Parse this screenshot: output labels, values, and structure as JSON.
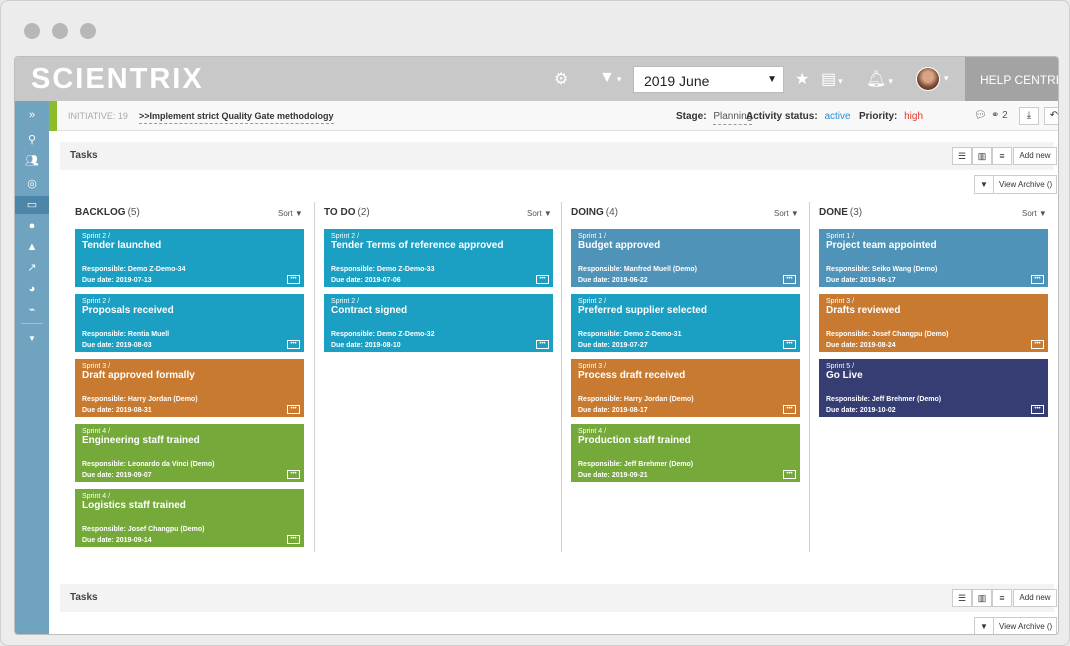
{
  "app": {
    "logo": "SCIENTRIX",
    "date_selected": "2019 June",
    "help_label": "HELP CENTRE"
  },
  "initiative": {
    "label": "INITIATIVE: 19",
    "title": ">>Implement strict Quality Gate methodology",
    "stage_label": "Stage:",
    "stage_value": "Planning",
    "activity_label": "Activity status:",
    "activity_value": "active",
    "priority_label": "Priority:",
    "priority_value": "high",
    "participants_count": "2",
    "colors": {
      "accent": "#8dbb2a",
      "active": "#2a8fcf",
      "high": "#e23b2b"
    }
  },
  "panel": {
    "title": "Tasks",
    "add_label": "Add new",
    "archive_label": "View Archive ()"
  },
  "panel2": {
    "title": "Tasks",
    "add_label": "Add new",
    "archive_label": "View Archive ()"
  },
  "board": {
    "sort_label": "Sort",
    "columns": [
      {
        "name": "BACKLOG",
        "count": "(5)",
        "cards": [
          {
            "sprint": "Sprint 2 /",
            "title": "Tender launched",
            "responsible": "Responsible: Demo Z-Demo-34",
            "due": "Due date: 2019-07-13",
            "color": "#1b9fc3"
          },
          {
            "sprint": "Sprint 2 /",
            "title": "Proposals received",
            "responsible": "Responsible: Rentia Muell",
            "due": "Due date: 2019-08-03",
            "color": "#1b9fc3"
          },
          {
            "sprint": "Sprint 3 /",
            "title": "Draft approved formally",
            "responsible": "Responsible: Harry Jordan (Demo)",
            "due": "Due date: 2019-08-31",
            "color": "#c97a31"
          },
          {
            "sprint": "Sprint 4 /",
            "title": "Engineering staff trained",
            "responsible": "Responsible: Leonardo da Vinci (Demo)",
            "due": "Due date: 2019-09-07",
            "color": "#75a93a"
          },
          {
            "sprint": "Sprint 4 /",
            "title": "Logistics staff trained",
            "responsible": "Responsible: Josef Changpu (Demo)",
            "due": "Due date: 2019-09-14",
            "color": "#75a93a"
          }
        ]
      },
      {
        "name": "TO DO",
        "count": "(2)",
        "cards": [
          {
            "sprint": "Sprint 2 /",
            "title": "Tender Terms of reference approved",
            "responsible": "Responsible: Demo Z-Demo-33",
            "due": "Due date: 2019-07-06",
            "color": "#1b9fc3"
          },
          {
            "sprint": "Sprint 2 /",
            "title": "Contract signed",
            "responsible": "Responsible: Demo Z-Demo-32",
            "due": "Due date: 2019-08-10",
            "color": "#1b9fc3"
          }
        ]
      },
      {
        "name": "DOING",
        "count": "(4)",
        "cards": [
          {
            "sprint": "Sprint 1 /",
            "title": "Budget approved",
            "responsible": "Responsible: Manfred Muell (Demo)",
            "due": "Due date: 2019-06-22",
            "color": "#4f93b8"
          },
          {
            "sprint": "Sprint 2 /",
            "title": "Preferred supplier selected",
            "responsible": "Responsible: Demo Z-Demo-31",
            "due": "Due date: 2019-07-27",
            "color": "#1b9fc3"
          },
          {
            "sprint": "Sprint 3 /",
            "title": "Process draft received",
            "responsible": "Responsible: Harry Jordan (Demo)",
            "due": "Due date: 2019-08-17",
            "color": "#c97a31"
          },
          {
            "sprint": "Sprint 4 /",
            "title": "Production staff trained",
            "responsible": "Responsible: Jeff Brehmer (Demo)",
            "due": "Due date: 2019-09-21",
            "color": "#75a93a"
          }
        ]
      },
      {
        "name": "DONE",
        "count": "(3)",
        "cards": [
          {
            "sprint": "Sprint 1 /",
            "title": "Project team appointed",
            "responsible": "Responsible: Seiko Wang (Demo)",
            "due": "Due date: 2019-06-17",
            "color": "#4f93b8"
          },
          {
            "sprint": "Sprint 3 /",
            "title": "Drafts reviewed",
            "responsible": "Responsible: Josef Changpu (Demo)",
            "due": "Due date: 2019-08-24",
            "color": "#c97a31"
          },
          {
            "sprint": "Sprint 5 /",
            "title": "Go Live",
            "responsible": "Responsible: Jeff Brehmer (Demo)",
            "due": "Due date: 2019-10-02",
            "color": "#363d73"
          }
        ]
      }
    ]
  }
}
